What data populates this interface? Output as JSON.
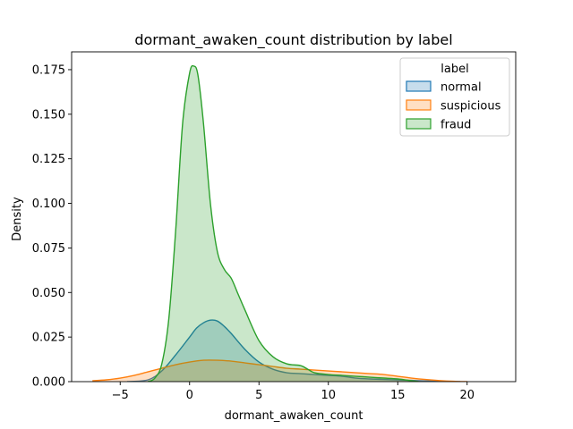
{
  "chart_data": {
    "type": "area",
    "title": "dormant_awaken_count distribution by label",
    "xlabel": "dormant_awaken_count",
    "ylabel": "Density",
    "xlim": [
      -8.5,
      23.5
    ],
    "ylim": [
      0,
      0.185
    ],
    "xticks": [
      -5,
      0,
      5,
      10,
      15,
      20
    ],
    "yticks": [
      0.0,
      0.025,
      0.05,
      0.075,
      0.1,
      0.125,
      0.15,
      0.175
    ],
    "ytick_labels": [
      "0.000",
      "0.025",
      "0.050",
      "0.075",
      "0.100",
      "0.125",
      "0.150",
      "0.175"
    ],
    "grid": false,
    "legend": {
      "title": "label",
      "position": "top-right"
    },
    "series": [
      {
        "name": "normal",
        "color": "#1f77b4",
        "x": [
          -4.5,
          -3,
          -2,
          -1,
          0,
          0.5,
          1,
          1.5,
          2,
          2.5,
          3,
          4,
          5,
          6,
          7,
          8,
          9,
          10,
          11,
          12,
          13,
          14,
          15,
          16,
          17,
          18,
          19,
          19.5
        ],
        "y": [
          0,
          0.001,
          0.006,
          0.015,
          0.025,
          0.03,
          0.033,
          0.0345,
          0.034,
          0.031,
          0.027,
          0.018,
          0.011,
          0.007,
          0.005,
          0.0045,
          0.004,
          0.0035,
          0.003,
          0.002,
          0.0015,
          0.0012,
          0.001,
          0.0007,
          0.0004,
          0.0002,
          0.0001,
          0
        ]
      },
      {
        "name": "suspicious",
        "color": "#ff7f0e",
        "x": [
          -7,
          -6,
          -5,
          -4,
          -3,
          -2,
          -1,
          0,
          1,
          2,
          3,
          4,
          5,
          6,
          7,
          8,
          9,
          10,
          11,
          12,
          13,
          14,
          15,
          16,
          17,
          18,
          19,
          20
        ],
        "y": [
          0.0005,
          0.001,
          0.002,
          0.0035,
          0.0055,
          0.0075,
          0.0095,
          0.011,
          0.012,
          0.012,
          0.0115,
          0.0105,
          0.0095,
          0.0085,
          0.0075,
          0.007,
          0.0065,
          0.006,
          0.0055,
          0.005,
          0.0045,
          0.004,
          0.003,
          0.002,
          0.0012,
          0.0006,
          0.0002,
          0
        ]
      },
      {
        "name": "fraud",
        "color": "#2ca02c",
        "x": [
          -3,
          -2.5,
          -2,
          -1.5,
          -1,
          -0.5,
          0,
          0.3,
          0.6,
          1,
          1.5,
          2,
          2.5,
          3,
          3.5,
          4,
          5,
          6,
          7,
          8,
          8.5,
          9,
          10,
          11,
          12,
          13,
          14,
          15,
          16,
          16.5
        ],
        "y": [
          0,
          0.002,
          0.01,
          0.035,
          0.085,
          0.145,
          0.173,
          0.177,
          0.172,
          0.145,
          0.1,
          0.073,
          0.063,
          0.058,
          0.049,
          0.04,
          0.023,
          0.014,
          0.01,
          0.009,
          0.007,
          0.005,
          0.004,
          0.0035,
          0.003,
          0.0025,
          0.002,
          0.0015,
          0.0005,
          0
        ]
      }
    ]
  }
}
